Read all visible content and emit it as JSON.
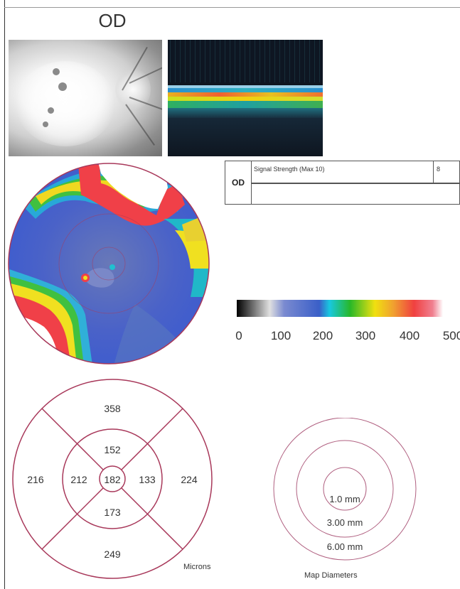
{
  "header": {
    "eye": "OD"
  },
  "signal_table": {
    "eye": "OD",
    "label": "Signal Strength (Max 10)",
    "value": "8"
  },
  "scale": {
    "ticks": [
      "0",
      "100",
      "200",
      "300",
      "400",
      "500"
    ]
  },
  "sector_map": {
    "superior_outer": "358",
    "superior_inner": "152",
    "temporal_outer": "216",
    "temporal_inner": "212",
    "central": "182",
    "nasal_inner": "133",
    "nasal_outer": "224",
    "inferior_inner": "173",
    "inferior_outer": "249",
    "units_label": "Microns"
  },
  "diameters": {
    "inner": "1.0 mm",
    "middle": "3.00 mm",
    "outer": "6.00 mm",
    "label": "Map Diameters"
  },
  "colors": {
    "map_outline": "#a8385a",
    "scale_stops": [
      "#000000",
      "#e0e0e0",
      "#3a5fc8",
      "#18c8e0",
      "#28b828",
      "#f0e010",
      "#f04040",
      "#ffffff"
    ]
  }
}
